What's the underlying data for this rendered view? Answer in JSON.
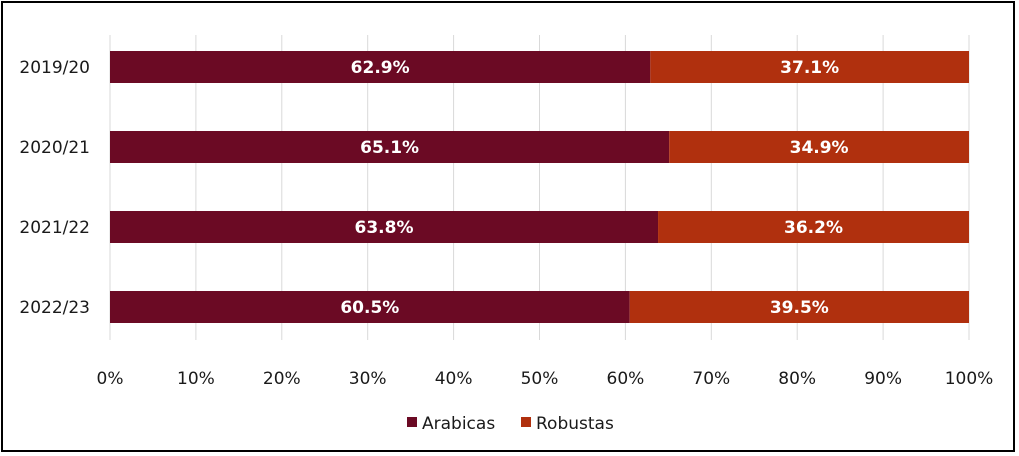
{
  "chart_data": {
    "type": "bar",
    "orientation": "horizontal",
    "stacked": true,
    "categories": [
      "2019/20",
      "2020/21",
      "2021/22",
      "2022/23"
    ],
    "series": [
      {
        "name": "Arabicas",
        "values": [
          62.9,
          65.1,
          63.8,
          60.5
        ],
        "labels": [
          "62.9%",
          "65.1%",
          "63.8%",
          "60.5%"
        ],
        "color": "#6b0a24"
      },
      {
        "name": "Robustas",
        "values": [
          37.1,
          34.9,
          36.2,
          39.5
        ],
        "labels": [
          "37.1%",
          "34.9%",
          "36.2%",
          "39.5%"
        ],
        "color": "#b0300e"
      }
    ],
    "xticks": [
      "0%",
      "10%",
      "20%",
      "30%",
      "40%",
      "50%",
      "60%",
      "70%",
      "80%",
      "90%",
      "100%"
    ],
    "xlim": [
      0,
      100
    ],
    "grid": true,
    "gridline_color": "#d9d9d9",
    "legend_position": "bottom",
    "title": "",
    "xlabel": "",
    "ylabel": ""
  }
}
